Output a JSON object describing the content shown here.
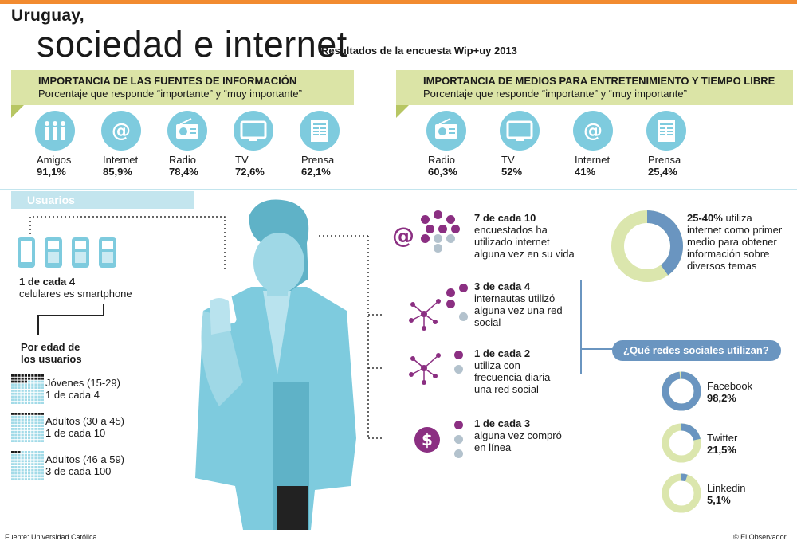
{
  "header": {
    "kicker": "Uruguay,",
    "title": "sociedad e internet",
    "subtitle": "Resultados de la encuesta Wip+uy 2013"
  },
  "info_sources": {
    "heading": "IMPORTANCIA DE LAS FUENTES DE INFORMACIÓN",
    "sub": "Porcentaje que responde “importante” y “muy importante”",
    "items": [
      {
        "label": "Amigos",
        "value": "91,1%",
        "icon": "people-icon"
      },
      {
        "label": "Internet",
        "value": "85,9%",
        "icon": "at-icon"
      },
      {
        "label": "Radio",
        "value": "78,4%",
        "icon": "radio-icon"
      },
      {
        "label": "TV",
        "value": "72,6%",
        "icon": "tv-icon"
      },
      {
        "label": "Prensa",
        "value": "62,1%",
        "icon": "newspaper-icon"
      }
    ]
  },
  "entertainment": {
    "heading": "IMPORTANCIA DE MEDIOS PARA ENTRETENIMIENTO Y TIEMPO LIBRE",
    "sub": "Porcentaje que responde “importante” y “muy importante”",
    "items": [
      {
        "label": "Radio",
        "value": "60,3%",
        "icon": "radio-icon"
      },
      {
        "label": "TV",
        "value": "52%",
        "icon": "tv-icon"
      },
      {
        "label": "Internet",
        "value": "41%",
        "icon": "at-icon"
      },
      {
        "label": "Prensa",
        "value": "25,4%",
        "icon": "newspaper-icon"
      }
    ]
  },
  "users": {
    "band": "Usuarios",
    "smartphone_bold": "1 de cada 4",
    "smartphone_text": "celulares es smartphone",
    "by_age_title_1": "Por edad de",
    "by_age_title_2": "los usuarios",
    "age_groups": [
      {
        "label": "Jóvenes (15-29)",
        "ratio": "1 de cada 4",
        "share": 0.25
      },
      {
        "label": "Adultos (30 a 45)",
        "ratio": "1 de cada 10",
        "share": 0.1
      },
      {
        "label": "Adultos (46 a 59)",
        "ratio": "3 de cada 100",
        "share": 0.03
      }
    ]
  },
  "facts": [
    {
      "bold": "7 de cada 10",
      "lines": [
        "encuestados ha",
        "utilizado internet",
        "alguna vez en su vida"
      ],
      "icon": "at-icon",
      "filled": 7,
      "total": 10
    },
    {
      "bold": "3 de cada 4",
      "lines": [
        "internautas utilizó",
        "alguna vez una red",
        "social"
      ],
      "icon": "network-icon",
      "filled": 3,
      "total": 4
    },
    {
      "bold": "1 de cada 2",
      "lines": [
        "utiliza con",
        "frecuencia diaria",
        "una red social"
      ],
      "icon": "network-icon",
      "filled": 1,
      "total": 2
    },
    {
      "bold": "1 de cada 3",
      "lines": [
        "alguna vez compró",
        "en línea"
      ],
      "icon": "dollar-icon",
      "filled": 1,
      "total": 3
    }
  ],
  "first_medium": {
    "bold": "25-40%",
    "lines_first": "utiliza",
    "lines": [
      "internet como primer",
      "medio para obtener",
      "información sobre",
      "diversos temas"
    ],
    "share_low": 0.25,
    "share_high": 0.4
  },
  "social": {
    "question": "¿Qué redes sociales utilizan?",
    "networks": [
      {
        "name": "Facebook",
        "value": "98,2%",
        "share": 0.982
      },
      {
        "name": "Twitter",
        "value": "21,5%",
        "share": 0.215
      },
      {
        "name": "Linkedin",
        "value": "5,1%",
        "share": 0.051
      }
    ]
  },
  "footer": {
    "source": "Fuente: Universidad Católica",
    "credit": "© El Observador"
  },
  "colors": {
    "accent": "#f28b30",
    "band": "#dbe4a6",
    "icon": "#7ecbde",
    "purple": "#8b2f82",
    "grey": "#b3c2cd",
    "blue": "#6a95c0"
  }
}
